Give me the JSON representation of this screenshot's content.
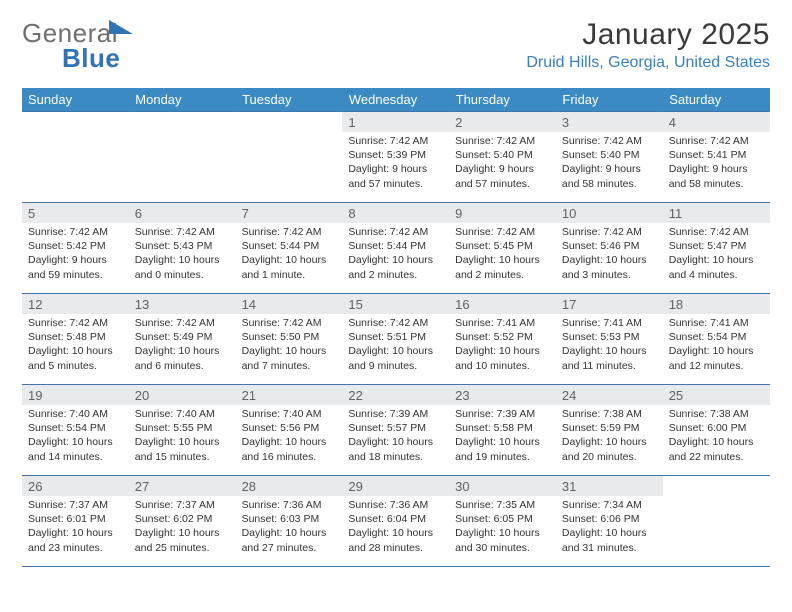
{
  "logo": {
    "part1": "General",
    "part2": "Blue"
  },
  "title": "January 2025",
  "location": "Druid Hills, Georgia, United States",
  "colors": {
    "header_bg": "#3b8ac4",
    "header_text": "#ffffff",
    "daynum_bg": "#e9eaeb",
    "daynum_text": "#5f6266",
    "body_text": "#333333",
    "rule": "#3f77aa",
    "location_text": "#3a7fbf",
    "logo_gray": "#6f6f6f",
    "logo_blue": "#2f74b5"
  },
  "weekdays": [
    "Sunday",
    "Monday",
    "Tuesday",
    "Wednesday",
    "Thursday",
    "Friday",
    "Saturday"
  ],
  "weeks": [
    [
      null,
      null,
      null,
      {
        "n": "1",
        "sr": "7:42 AM",
        "ss": "5:39 PM",
        "dl": "9 hours and 57 minutes."
      },
      {
        "n": "2",
        "sr": "7:42 AM",
        "ss": "5:40 PM",
        "dl": "9 hours and 57 minutes."
      },
      {
        "n": "3",
        "sr": "7:42 AM",
        "ss": "5:40 PM",
        "dl": "9 hours and 58 minutes."
      },
      {
        "n": "4",
        "sr": "7:42 AM",
        "ss": "5:41 PM",
        "dl": "9 hours and 58 minutes."
      }
    ],
    [
      {
        "n": "5",
        "sr": "7:42 AM",
        "ss": "5:42 PM",
        "dl": "9 hours and 59 minutes."
      },
      {
        "n": "6",
        "sr": "7:42 AM",
        "ss": "5:43 PM",
        "dl": "10 hours and 0 minutes."
      },
      {
        "n": "7",
        "sr": "7:42 AM",
        "ss": "5:44 PM",
        "dl": "10 hours and 1 minute."
      },
      {
        "n": "8",
        "sr": "7:42 AM",
        "ss": "5:44 PM",
        "dl": "10 hours and 2 minutes."
      },
      {
        "n": "9",
        "sr": "7:42 AM",
        "ss": "5:45 PM",
        "dl": "10 hours and 2 minutes."
      },
      {
        "n": "10",
        "sr": "7:42 AM",
        "ss": "5:46 PM",
        "dl": "10 hours and 3 minutes."
      },
      {
        "n": "11",
        "sr": "7:42 AM",
        "ss": "5:47 PM",
        "dl": "10 hours and 4 minutes."
      }
    ],
    [
      {
        "n": "12",
        "sr": "7:42 AM",
        "ss": "5:48 PM",
        "dl": "10 hours and 5 minutes."
      },
      {
        "n": "13",
        "sr": "7:42 AM",
        "ss": "5:49 PM",
        "dl": "10 hours and 6 minutes."
      },
      {
        "n": "14",
        "sr": "7:42 AM",
        "ss": "5:50 PM",
        "dl": "10 hours and 7 minutes."
      },
      {
        "n": "15",
        "sr": "7:42 AM",
        "ss": "5:51 PM",
        "dl": "10 hours and 9 minutes."
      },
      {
        "n": "16",
        "sr": "7:41 AM",
        "ss": "5:52 PM",
        "dl": "10 hours and 10 minutes."
      },
      {
        "n": "17",
        "sr": "7:41 AM",
        "ss": "5:53 PM",
        "dl": "10 hours and 11 minutes."
      },
      {
        "n": "18",
        "sr": "7:41 AM",
        "ss": "5:54 PM",
        "dl": "10 hours and 12 minutes."
      }
    ],
    [
      {
        "n": "19",
        "sr": "7:40 AM",
        "ss": "5:54 PM",
        "dl": "10 hours and 14 minutes."
      },
      {
        "n": "20",
        "sr": "7:40 AM",
        "ss": "5:55 PM",
        "dl": "10 hours and 15 minutes."
      },
      {
        "n": "21",
        "sr": "7:40 AM",
        "ss": "5:56 PM",
        "dl": "10 hours and 16 minutes."
      },
      {
        "n": "22",
        "sr": "7:39 AM",
        "ss": "5:57 PM",
        "dl": "10 hours and 18 minutes."
      },
      {
        "n": "23",
        "sr": "7:39 AM",
        "ss": "5:58 PM",
        "dl": "10 hours and 19 minutes."
      },
      {
        "n": "24",
        "sr": "7:38 AM",
        "ss": "5:59 PM",
        "dl": "10 hours and 20 minutes."
      },
      {
        "n": "25",
        "sr": "7:38 AM",
        "ss": "6:00 PM",
        "dl": "10 hours and 22 minutes."
      }
    ],
    [
      {
        "n": "26",
        "sr": "7:37 AM",
        "ss": "6:01 PM",
        "dl": "10 hours and 23 minutes."
      },
      {
        "n": "27",
        "sr": "7:37 AM",
        "ss": "6:02 PM",
        "dl": "10 hours and 25 minutes."
      },
      {
        "n": "28",
        "sr": "7:36 AM",
        "ss": "6:03 PM",
        "dl": "10 hours and 27 minutes."
      },
      {
        "n": "29",
        "sr": "7:36 AM",
        "ss": "6:04 PM",
        "dl": "10 hours and 28 minutes."
      },
      {
        "n": "30",
        "sr": "7:35 AM",
        "ss": "6:05 PM",
        "dl": "10 hours and 30 minutes."
      },
      {
        "n": "31",
        "sr": "7:34 AM",
        "ss": "6:06 PM",
        "dl": "10 hours and 31 minutes."
      },
      null
    ]
  ],
  "labels": {
    "sunrise": "Sunrise: ",
    "sunset": "Sunset: ",
    "daylight": "Daylight: "
  }
}
